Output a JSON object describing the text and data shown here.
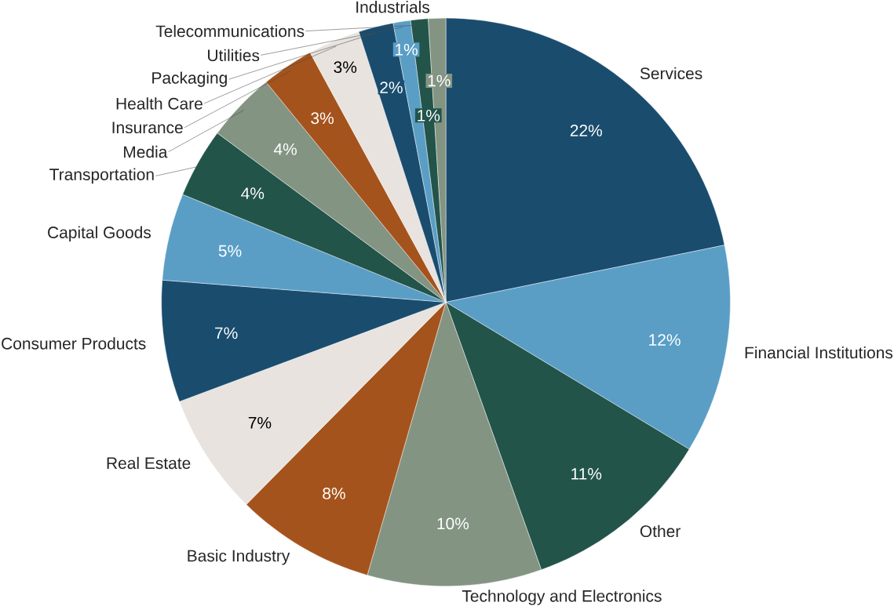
{
  "chart_data": {
    "type": "pie",
    "categories": [
      "Services",
      "Financial Institutions",
      "Other",
      "Technology and Electronics",
      "Basic Industry",
      "Real Estate",
      "Consumer Products",
      "Capital Goods",
      "Transportation",
      "Media",
      "Insurance",
      "Health Care",
      "Packaging",
      "Utilities",
      "Telecommunications",
      "Industrials"
    ],
    "values": [
      22,
      12,
      11,
      10,
      8,
      7,
      7,
      5,
      4,
      4,
      3,
      3,
      2,
      1,
      1,
      1
    ],
    "value_labels": [
      "22%",
      "12%",
      "11%",
      "10%",
      "8%",
      "7%",
      "7%",
      "5%",
      "4%",
      "4%",
      "3%",
      "3%",
      "2%",
      "1%",
      "1%",
      "1%"
    ],
    "colors": [
      "#1a4c6e",
      "#5a9ec6",
      "#22544a",
      "#839483",
      "#a5531c",
      "#e8e3de",
      "#1a4c6e",
      "#5a9ec6",
      "#22544a",
      "#839483",
      "#a5531c",
      "#e8e3de",
      "#1a4c6e",
      "#5a9ec6",
      "#22544a",
      "#839483"
    ]
  }
}
